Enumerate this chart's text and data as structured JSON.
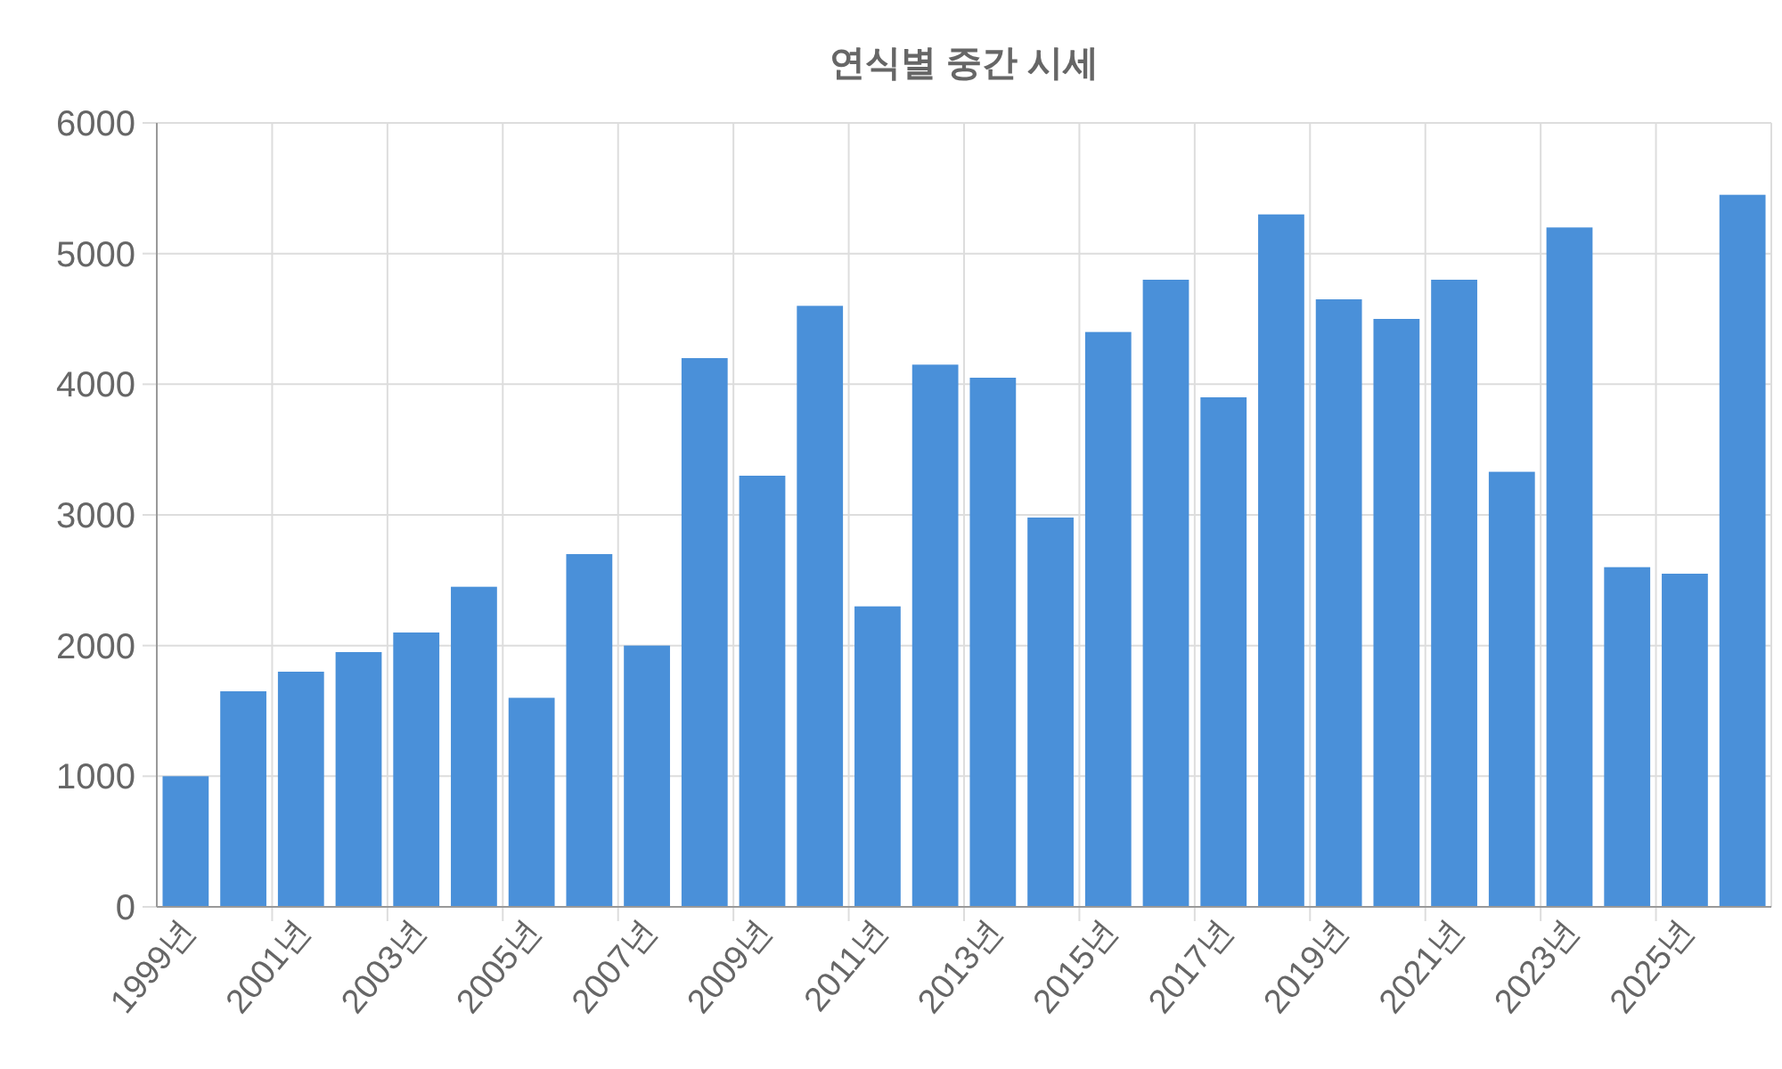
{
  "chart_data": {
    "type": "bar",
    "title": "연식별 중간 시세",
    "categories": [
      "1999년",
      null,
      "2001년",
      null,
      "2003년",
      null,
      "2005년",
      null,
      "2007년",
      null,
      "2009년",
      null,
      "2011년",
      null,
      "2013년",
      null,
      "2015년",
      null,
      "2017년",
      null,
      "2019년",
      null,
      "2021년",
      null,
      "2023년",
      null,
      "2025년",
      null
    ],
    "values": [
      1000,
      1650,
      1800,
      1950,
      2100,
      2450,
      1600,
      2700,
      2000,
      4200,
      3300,
      4600,
      2300,
      4150,
      4050,
      2980,
      4400,
      4800,
      3900,
      5300,
      4650,
      4500,
      4800,
      3330,
      5200,
      2600,
      2550,
      5450
    ],
    "color": "#4a90d9",
    "ylim": [
      0,
      6000
    ],
    "yticks": [
      0,
      1000,
      2000,
      3000,
      4000,
      5000,
      6000
    ],
    "grid": true
  }
}
